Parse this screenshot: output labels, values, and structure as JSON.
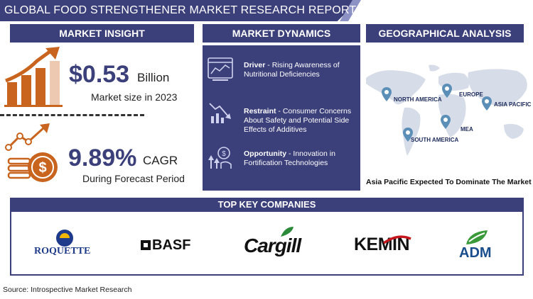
{
  "header": {
    "title": "GLOBAL FOOD STRENGTHENER MARKET RESEARCH REPORT"
  },
  "market_insight": {
    "heading": "MARKET INSIGHT",
    "market_size": {
      "value": "$0.53",
      "unit": "Billion",
      "caption": "Market size in 2023"
    },
    "cagr": {
      "value": "9.89%",
      "unit": "CAGR",
      "caption": "During Forecast Period"
    }
  },
  "market_dynamics": {
    "heading": "MARKET DYNAMICS",
    "items": [
      {
        "label": "Driver",
        "text": " - Rising Awareness of Nutritional Deficiencies",
        "icon": "dashboard-chart-icon"
      },
      {
        "label": "Restraint",
        "text": " - Consumer Concerns About Safety and Potential Side Effects of Additives",
        "icon": "declining-chart-icon"
      },
      {
        "label": "Opportunity",
        "text": " - Innovation in Fortification Technologies",
        "icon": "growth-coin-icon"
      }
    ]
  },
  "geographical_analysis": {
    "heading": "GEOGRAPHICAL ANALYSIS",
    "regions": [
      "NORTH AMERICA",
      "EUROPE",
      "ASIA PACIFIC",
      "MEA",
      "SOUTH AMERICA"
    ],
    "caption": "Asia Pacific Expected To Dominate The Market"
  },
  "companies": {
    "heading": "TOP KEY COMPANIES",
    "logos": [
      "ROQUETTE",
      "BASF",
      "Cargill",
      "KEMIN",
      "ADM"
    ]
  },
  "footer": {
    "source": "Source: Introspective Market Research"
  },
  "colors": {
    "navy": "#3b3f7a",
    "orange": "#c8641e",
    "pin": "#5b8fb8",
    "map": "#d7dde8"
  }
}
